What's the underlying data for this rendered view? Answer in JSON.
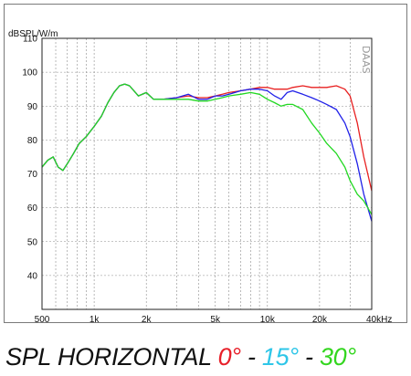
{
  "caption": {
    "main": "SPL HORIZONTAL ",
    "deg0": "0°",
    "sep1": " - ",
    "deg15": "15°",
    "sep2": " - ",
    "deg30": "30°",
    "colors": {
      "deg0": "#e8202a",
      "deg15": "#2ec6e8",
      "deg30": "#33d61f",
      "text": "#111111"
    }
  },
  "chart_data": {
    "type": "line",
    "ylabel": "dBSPL/W/m",
    "watermark": "DAAS",
    "xscale": "log",
    "xlim": [
      500,
      40000
    ],
    "ylim": [
      30,
      110
    ],
    "x_ticks": [
      {
        "v": 500,
        "label": "500"
      },
      {
        "v": 1000,
        "label": "1k"
      },
      {
        "v": 2000,
        "label": "2k"
      },
      {
        "v": 5000,
        "label": "5k"
      },
      {
        "v": 10000,
        "label": "10k"
      },
      {
        "v": 20000,
        "label": "20k"
      },
      {
        "v": 40000,
        "label": "40kHz"
      }
    ],
    "y_ticks": [
      40,
      50,
      60,
      70,
      80,
      90,
      100,
      110
    ],
    "grid": true,
    "series": [
      {
        "color": "#e82020",
        "x": [
          500,
          540,
          580,
          620,
          660,
          700,
          760,
          820,
          900,
          1000,
          1100,
          1200,
          1300,
          1400,
          1500,
          1600,
          1800,
          2000,
          2200,
          2500,
          3000,
          3500,
          4000,
          4500,
          5000,
          5500,
          6000,
          7000,
          8000,
          9000,
          10000,
          11000,
          12000,
          13000,
          14000,
          16000,
          18000,
          20000,
          22000,
          25000,
          28000,
          30000,
          33000,
          36000,
          40000
        ],
        "y": [
          72,
          74,
          75,
          72,
          71,
          73,
          76,
          79,
          81,
          84,
          87,
          91,
          94,
          96,
          96.5,
          96,
          93,
          94,
          92,
          92,
          92.5,
          93,
          92.5,
          92.5,
          93,
          93.5,
          94,
          94.5,
          95,
          95.5,
          95.5,
          95,
          95,
          95,
          95.5,
          96,
          95.5,
          95.5,
          95.5,
          96,
          95,
          93,
          85,
          75,
          65
        ]
      },
      {
        "color": "#2020e8",
        "x": [
          500,
          540,
          580,
          620,
          660,
          700,
          760,
          820,
          900,
          1000,
          1100,
          1200,
          1300,
          1400,
          1500,
          1600,
          1800,
          2000,
          2200,
          2500,
          3000,
          3500,
          4000,
          4500,
          5000,
          5500,
          6000,
          7000,
          8000,
          9000,
          10000,
          11000,
          12000,
          13000,
          14000,
          16000,
          18000,
          20000,
          22000,
          25000,
          28000,
          30000,
          33000,
          36000,
          40000
        ],
        "y": [
          72,
          74,
          75,
          72,
          71,
          73,
          76,
          79,
          81,
          84,
          87,
          91,
          94,
          96,
          96.5,
          96,
          93,
          94,
          92,
          92,
          92.5,
          93.5,
          92,
          92,
          93,
          93,
          93.5,
          94.5,
          95,
          95,
          94.5,
          93,
          92,
          94,
          94.5,
          93.5,
          92.5,
          91.5,
          90.5,
          89,
          85,
          81,
          73,
          64,
          56
        ]
      },
      {
        "color": "#22d822",
        "x": [
          500,
          540,
          580,
          620,
          660,
          700,
          760,
          820,
          900,
          1000,
          1100,
          1200,
          1300,
          1400,
          1500,
          1600,
          1800,
          2000,
          2200,
          2500,
          3000,
          3500,
          4000,
          4500,
          5000,
          5500,
          6000,
          7000,
          8000,
          9000,
          10000,
          11000,
          12000,
          13000,
          14000,
          16000,
          18000,
          20000,
          22000,
          25000,
          28000,
          30000,
          33000,
          36000,
          40000
        ],
        "y": [
          72,
          74,
          75,
          72,
          71,
          73,
          76,
          79,
          81,
          84,
          87,
          91,
          94,
          96,
          96.5,
          96,
          93,
          94,
          92,
          92,
          92,
          92,
          91.5,
          91.5,
          92,
          92.5,
          93,
          93.5,
          94,
          93.5,
          92,
          91,
          90,
          90.5,
          90.5,
          89,
          85,
          82,
          79,
          76,
          72,
          68,
          64,
          62,
          58
        ]
      }
    ]
  }
}
